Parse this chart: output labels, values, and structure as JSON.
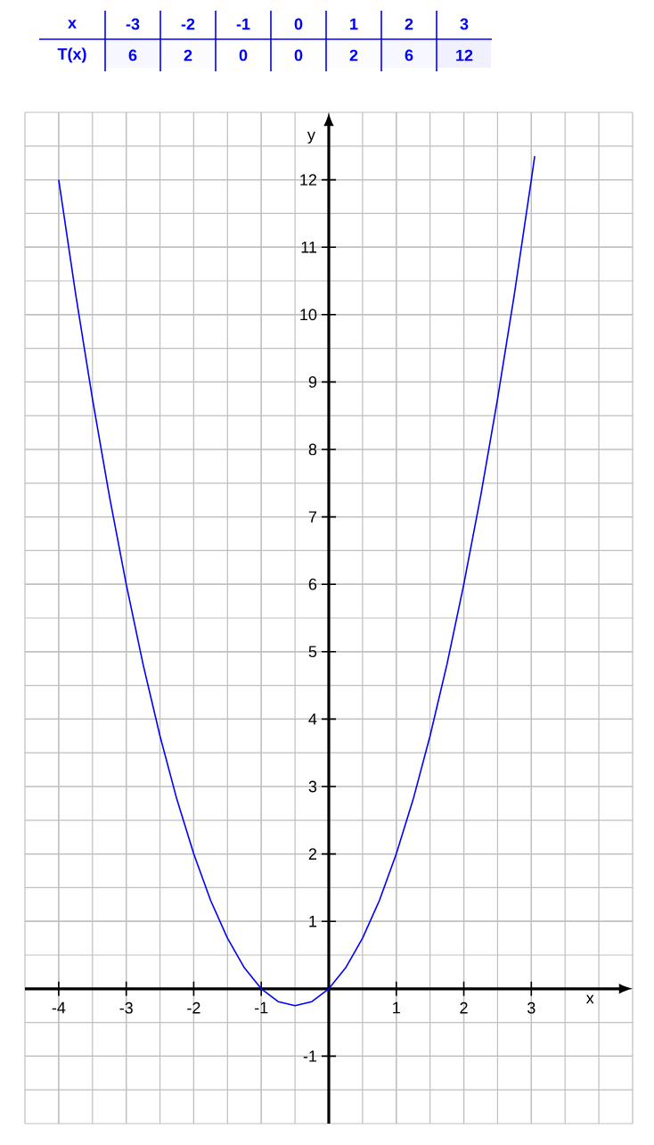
{
  "chart_data": [
    {
      "type": "heatmap",
      "xlabel": "x",
      "categories": [
        "-3",
        "-2",
        "-1",
        "0",
        "1",
        "2",
        "3"
      ],
      "y_categories": [
        "T(x)"
      ],
      "cells": [
        [
          6,
          2,
          0,
          0,
          2,
          6,
          12
        ]
      ],
      "cell_labels": [
        [
          "6",
          "2",
          "0",
          "0",
          "2",
          "6",
          "12"
        ]
      ]
    },
    {
      "type": "line",
      "xlabel": "x",
      "ylabel": "y",
      "xlim": [
        -4.5,
        4.5
      ],
      "ylim": [
        -2,
        13
      ],
      "grid": true,
      "marker": "none",
      "line_style": "solid",
      "xticks": [
        -4,
        -3,
        -2,
        -1,
        1,
        2,
        3
      ],
      "yticks": [
        -1,
        1,
        2,
        3,
        4,
        5,
        6,
        7,
        8,
        9,
        10,
        11,
        12
      ],
      "series": [
        {
          "color": "#0000ff",
          "x": [
            -4,
            -3.75,
            -3.5,
            -3.25,
            -3,
            -2.75,
            -2.5,
            -2.25,
            -2,
            -1.75,
            -1.5,
            -1.25,
            -1,
            -0.75,
            -0.5,
            -0.25,
            0,
            0.25,
            0.5,
            0.75,
            1,
            1.25,
            1.5,
            1.75,
            2,
            2.25,
            2.5,
            2.75,
            3,
            3.05
          ],
          "values": [
            12,
            10.31,
            8.75,
            7.31,
            6,
            4.81,
            3.75,
            2.81,
            2,
            1.31,
            0.75,
            0.31,
            0,
            -0.19,
            -0.25,
            -0.19,
            0,
            0.31,
            0.75,
            1.31,
            2,
            2.81,
            3.75,
            4.81,
            6,
            7.31,
            8.75,
            10.31,
            12,
            12.35
          ]
        }
      ]
    }
  ]
}
